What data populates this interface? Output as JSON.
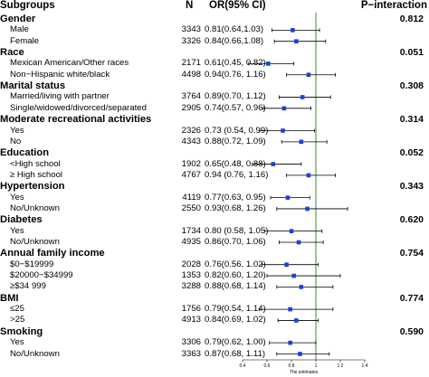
{
  "header": {
    "subgroups": "Subgroups",
    "n": "N",
    "or": "OR(95% CI)",
    "p": "P−interaction"
  },
  "chart_data": {
    "type": "forest",
    "xlabel": "The estimates",
    "xlim": [
      0.4,
      1.4
    ],
    "ticks": [
      "0.4",
      "0.6",
      "0.8",
      "1",
      "1.2",
      "1.4"
    ],
    "tick_values": [
      0.4,
      0.6,
      0.8,
      1.0,
      1.2,
      1.4
    ],
    "reference_line": 1.0,
    "marker_color": "#1a3fe0",
    "reference_color": "#3a8a2e",
    "rows": [
      {
        "type": "group",
        "label": "Gender",
        "p": "0.812"
      },
      {
        "type": "sub",
        "label": "Male",
        "n": "3343",
        "or_text": "0.81(0.64,1.03)",
        "or": 0.81,
        "lo": 0.64,
        "hi": 1.03
      },
      {
        "type": "sub",
        "label": "Female",
        "n": "3326",
        "or_text": "0.84(0.66,1.08)",
        "or": 0.84,
        "lo": 0.66,
        "hi": 1.08
      },
      {
        "type": "group",
        "label": "Race",
        "p": "0.051"
      },
      {
        "type": "sub",
        "label": "Mexican American/Other races",
        "n": "2171",
        "or_text": "0.61(0.45, 0.82)",
        "or": 0.61,
        "lo": 0.45,
        "hi": 0.82
      },
      {
        "type": "sub",
        "label": "Non−Hispanic white/black",
        "n": "4498",
        "or_text": "0.94(0.76, 1.16)",
        "or": 0.94,
        "lo": 0.76,
        "hi": 1.16
      },
      {
        "type": "group",
        "label": "Marital status",
        "p": "0.308"
      },
      {
        "type": "sub",
        "label": "Married/living with partner",
        "n": "3764",
        "or_text": "0.89(0.70, 1.12)",
        "or": 0.89,
        "lo": 0.7,
        "hi": 1.12
      },
      {
        "type": "sub",
        "label": "Single/widowed/divorced/separated",
        "n": "2905",
        "or_text": "0.74(0.57, 0.96)",
        "or": 0.74,
        "lo": 0.57,
        "hi": 0.96
      },
      {
        "type": "group",
        "label": "Moderate recreational activities",
        "p": "0.314"
      },
      {
        "type": "sub",
        "label": "Yes",
        "n": "2326",
        "or_text": "0.73 (0.54, 0.99)",
        "or": 0.73,
        "lo": 0.54,
        "hi": 0.99
      },
      {
        "type": "sub",
        "label": "No",
        "n": "4343",
        "or_text": "0.88(0.72, 1.09)",
        "or": 0.88,
        "lo": 0.72,
        "hi": 1.09
      },
      {
        "type": "group",
        "label": "Education",
        "p": "0.052"
      },
      {
        "type": "sub",
        "label": "<High school",
        "n": "1902",
        "or_text": "0.65(0.48, 0.88)",
        "or": 0.65,
        "lo": 0.48,
        "hi": 0.88
      },
      {
        "type": "sub",
        "label": "≥ High school",
        "n": "4767",
        "or_text": "0.94 (0.76, 1.16)",
        "or": 0.94,
        "lo": 0.76,
        "hi": 1.16
      },
      {
        "type": "group",
        "label": "Hypertension",
        "p": "0.343"
      },
      {
        "type": "sub",
        "label": "Yes",
        "n": "4119",
        "or_text": "0.77(0.63, 0.95)",
        "or": 0.77,
        "lo": 0.63,
        "hi": 0.95
      },
      {
        "type": "sub",
        "label": "No/Unknown",
        "n": "2550",
        "or_text": "0.93(0.68, 1.26)",
        "or": 0.93,
        "lo": 0.68,
        "hi": 1.26
      },
      {
        "type": "group",
        "label": "Diabetes",
        "p": "0.620"
      },
      {
        "type": "sub",
        "label": "Yes",
        "n": "1734",
        "or_text": "0.80 (0.58, 1.05)",
        "or": 0.8,
        "lo": 0.58,
        "hi": 1.05
      },
      {
        "type": "sub",
        "label": "No/Unknown",
        "n": "4935",
        "or_text": "0.86(0.70, 1.06)",
        "or": 0.86,
        "lo": 0.7,
        "hi": 1.06
      },
      {
        "type": "group",
        "label": "Annual family income",
        "p": "0.754"
      },
      {
        "type": "sub",
        "label": "$0−$19999",
        "n": "2028",
        "or_text": "0.76(0.56, 1.02)",
        "or": 0.76,
        "lo": 0.56,
        "hi": 1.02
      },
      {
        "type": "sub",
        "label": "$20000−$34999",
        "n": "1353",
        "or_text": "0.82(0.60, 1.20)",
        "or": 0.82,
        "lo": 0.6,
        "hi": 1.2
      },
      {
        "type": "sub",
        "label": "≥$34 999",
        "n": "3288",
        "or_text": "0.88(0.68, 1.14)",
        "or": 0.88,
        "lo": 0.68,
        "hi": 1.14
      },
      {
        "type": "group",
        "label": "BMI",
        "p": "0.774"
      },
      {
        "type": "sub",
        "label": "≤25",
        "n": "1756",
        "or_text": "0.79(0.54, 1.14)",
        "or": 0.79,
        "lo": 0.54,
        "hi": 1.14
      },
      {
        "type": "sub",
        "label": ">25",
        "n": "4913",
        "or_text": "0.84(0.69, 1.02)",
        "or": 0.84,
        "lo": 0.69,
        "hi": 1.02
      },
      {
        "type": "group",
        "label": "Smoking",
        "p": "0.590"
      },
      {
        "type": "sub",
        "label": "Yes",
        "n": "3306",
        "or_text": "0.79(0.62, 1.00)",
        "or": 0.79,
        "lo": 0.62,
        "hi": 1.0
      },
      {
        "type": "sub",
        "label": "No/Unknown",
        "n": "3363",
        "or_text": "0.87(0.68, 1.11)",
        "or": 0.87,
        "lo": 0.68,
        "hi": 1.11
      }
    ]
  }
}
